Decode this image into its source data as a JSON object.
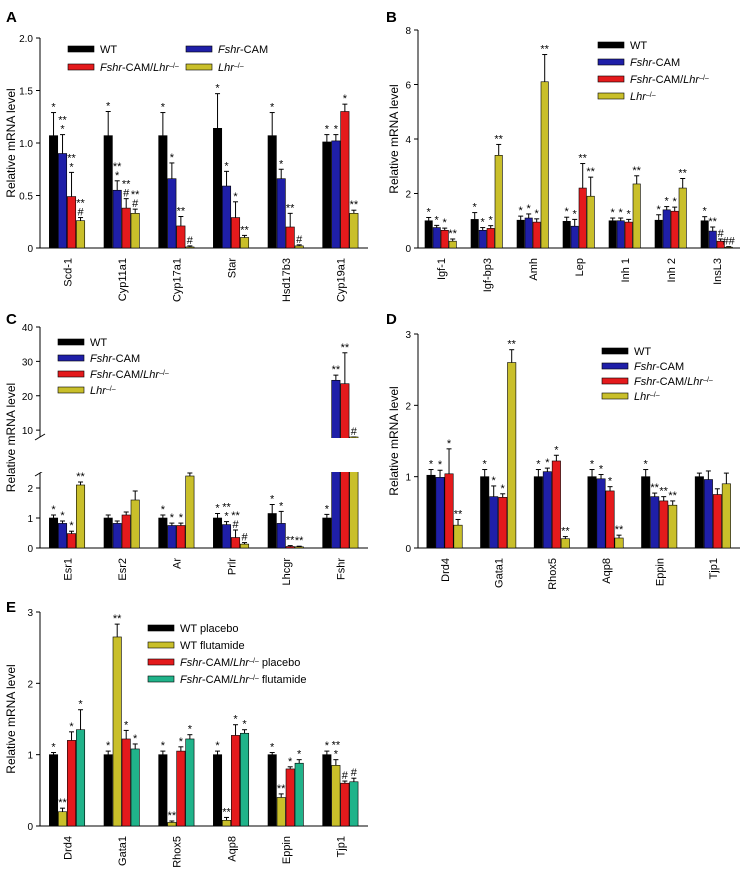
{
  "legend_symbols": {
    "double": "**",
    "single": "*",
    "hash": "#",
    "hash2": "##"
  },
  "colors": {
    "WT": "#000000",
    "Fshr-CAM": "#1f1fa8",
    "Fshr-CAM/Lhr-/-": "#e41a1c",
    "Lhr-/-": "#c9bf2a",
    "flutamide_cam": "#20b38a"
  },
  "chart_data": [
    {
      "panel": "A",
      "type": "bar",
      "ylabel": "Relative mRNA level",
      "ylim": [
        0,
        2.0
      ],
      "yticks": [
        "0",
        "0.5",
        "1.0",
        "1.5",
        "2.0"
      ],
      "categories": [
        "Scd-1",
        "Cyp11a1",
        "Cyp17a1",
        "Star",
        "Hsd17b3",
        "Cyp19a1"
      ],
      "series": [
        {
          "name": "WT",
          "values": [
            1.07,
            1.07,
            1.07,
            1.14,
            1.07,
            1.01
          ],
          "errors": [
            0.22,
            0.23,
            0.22,
            0.33,
            0.22,
            0.07
          ],
          "labels": [
            "*",
            "*",
            "*",
            "*",
            "*",
            "*"
          ]
        },
        {
          "name": "Fshr-CAM",
          "values": [
            0.9,
            0.55,
            0.66,
            0.59,
            0.66,
            1.02
          ],
          "errors": [
            0.18,
            0.09,
            0.15,
            0.14,
            0.09,
            0.06
          ],
          "labels": [
            "**\n*",
            "**\n*",
            "*",
            "*",
            "*",
            "*"
          ]
        },
        {
          "name": "Fshr-CAM/Lhr-/-",
          "values": [
            0.49,
            0.38,
            0.21,
            0.29,
            0.2,
            1.3
          ],
          "errors": [
            0.23,
            0.09,
            0.09,
            0.15,
            0.13,
            0.07
          ],
          "labels": [
            "**\n*",
            "**\n#",
            "**",
            "*",
            "**",
            "*"
          ]
        },
        {
          "name": "Lhr-/-",
          "values": [
            0.26,
            0.33,
            0.01,
            0.1,
            0.02,
            0.33
          ],
          "errors": [
            0.03,
            0.04,
            0.01,
            0.02,
            0.01,
            0.03
          ],
          "labels": [
            "**\n#",
            "**\n#",
            "#",
            "**",
            "#",
            "**"
          ]
        }
      ],
      "legend": [
        "WT",
        "Fshr-CAM",
        "Fshr-CAM/Lhr-/-",
        "Lhr-/-"
      ]
    },
    {
      "panel": "B",
      "type": "bar",
      "ylabel": "Relative mRNA level",
      "ylim": [
        0,
        8
      ],
      "yticks": [
        "0",
        "2",
        "4",
        "6",
        "8"
      ],
      "categories": [
        "Igf-1",
        "Igf-bp3",
        "Amh",
        "Lep",
        "Inh 1",
        "Inh 2",
        "InsL3"
      ],
      "series": [
        {
          "name": "WT",
          "values": [
            1.0,
            1.05,
            1.02,
            0.98,
            1.0,
            1.02,
            1.0
          ],
          "errors": [
            0.12,
            0.25,
            0.15,
            0.15,
            0.1,
            0.2,
            0.15
          ],
          "labels": [
            "*",
            "*",
            "*",
            "*",
            "*",
            "*",
            "*"
          ]
        },
        {
          "name": "Fshr-CAM",
          "values": [
            0.75,
            0.65,
            1.1,
            0.8,
            1.0,
            1.4,
            0.62
          ],
          "errors": [
            0.08,
            0.1,
            0.15,
            0.25,
            0.1,
            0.12,
            0.15
          ],
          "labels": [
            "*",
            "*",
            "*",
            "*",
            "*",
            "*",
            "**"
          ]
        },
        {
          "name": "Fshr-CAM/Lhr-/-",
          "values": [
            0.65,
            0.72,
            0.95,
            2.2,
            0.95,
            1.35,
            0.25
          ],
          "errors": [
            0.08,
            0.1,
            0.12,
            0.9,
            0.1,
            0.15,
            0.08
          ],
          "labels": [
            "*",
            "*",
            "*",
            "**",
            "*",
            "*",
            "#"
          ]
        },
        {
          "name": "Lhr-/-",
          "values": [
            0.25,
            3.4,
            6.1,
            1.9,
            2.35,
            2.2,
            0.03
          ],
          "errors": [
            0.08,
            0.4,
            1.0,
            0.7,
            0.3,
            0.35,
            0.02
          ],
          "labels": [
            "**",
            "**",
            "**",
            "**",
            "**",
            "**",
            "##"
          ]
        }
      ],
      "legend": [
        "WT",
        "Fshr-CAM",
        "Fshr-CAM/Lhr-/-",
        "Lhr-/-"
      ]
    },
    {
      "panel": "C",
      "type": "bar",
      "broken_axis": true,
      "ylabel": "Relative mRNA level",
      "ylim_lower": [
        0,
        2.5
      ],
      "yticks_lower": [
        "0",
        "1",
        "2"
      ],
      "ylim_upper": [
        8,
        40
      ],
      "yticks_upper": [
        "10",
        "20",
        "30",
        "40"
      ],
      "categories": [
        "Esr1",
        "Esr2",
        "Ar",
        "Prlr",
        "Lhcgr",
        "Fshr"
      ],
      "series": [
        {
          "name": "WT",
          "values": [
            1.0,
            1.0,
            1.0,
            1.0,
            1.15,
            1.0
          ],
          "errors": [
            0.1,
            0.1,
            0.1,
            0.15,
            0.3,
            0.12
          ],
          "labels": [
            "*",
            "",
            "*",
            "*",
            "*",
            "*"
          ]
        },
        {
          "name": "Fshr-CAM",
          "values": [
            0.82,
            0.82,
            0.75,
            0.78,
            0.82,
            24.5
          ],
          "errors": [
            0.08,
            0.08,
            0.08,
            0.1,
            0.4,
            1.5
          ],
          "labels": [
            "*",
            "",
            "*",
            "**\n*",
            "*",
            "**"
          ]
        },
        {
          "name": "Fshr-CAM/Lhr-/-",
          "values": [
            0.48,
            1.1,
            0.75,
            0.35,
            0.05,
            23.5
          ],
          "errors": [
            0.08,
            0.1,
            0.08,
            0.25,
            0.03,
            9.0
          ],
          "labels": [
            "*",
            "",
            "*",
            "**\n#",
            "**",
            "**"
          ]
        },
        {
          "name": "Lhr-/-",
          "values": [
            2.1,
            1.6,
            2.4,
            0.13,
            0.04,
            6.0
          ],
          "errors": [
            0.1,
            0.3,
            0.1,
            0.05,
            0.02,
            0.6
          ],
          "labels": [
            "**",
            "",
            "**",
            "#",
            "**",
            "#"
          ]
        }
      ],
      "legend": [
        "WT",
        "Fshr-CAM",
        "Fshr-CAM/Lhr-/-",
        "Lhr-/-"
      ]
    },
    {
      "panel": "D",
      "type": "bar",
      "ylabel": "Relative mRNA level",
      "ylim": [
        0,
        3
      ],
      "yticks": [
        "0",
        "1",
        "2",
        "3"
      ],
      "categories": [
        "Drd4",
        "Gata1",
        "Rhox5",
        "Aqp8",
        "Eppin",
        "Tjp1"
      ],
      "series": [
        {
          "name": "WT",
          "values": [
            1.02,
            1.0,
            1.0,
            1.0,
            1.0,
            1.0
          ],
          "errors": [
            0.08,
            0.1,
            0.1,
            0.1,
            0.1,
            0.05
          ],
          "labels": [
            "*",
            "*",
            "*",
            "*",
            "*",
            ""
          ]
        },
        {
          "name": "Fshr-CAM",
          "values": [
            0.99,
            0.72,
            1.07,
            0.97,
            0.72,
            0.96
          ],
          "errors": [
            0.1,
            0.15,
            0.05,
            0.06,
            0.05,
            0.12
          ],
          "labels": [
            "*",
            "*",
            "*",
            "*",
            "**",
            ""
          ]
        },
        {
          "name": "Fshr-CAM/Lhr-/-",
          "values": [
            1.04,
            0.71,
            1.22,
            0.8,
            0.66,
            0.75
          ],
          "errors": [
            0.35,
            0.05,
            0.08,
            0.06,
            0.06,
            0.08
          ],
          "labels": [
            "*",
            "*",
            "*",
            "*",
            "**",
            ""
          ]
        },
        {
          "name": "Lhr-/-",
          "values": [
            0.32,
            2.6,
            0.13,
            0.14,
            0.6,
            0.9
          ],
          "errors": [
            0.08,
            0.18,
            0.03,
            0.04,
            0.06,
            0.15
          ],
          "labels": [
            "**",
            "**",
            "**",
            "**",
            "**",
            ""
          ]
        }
      ],
      "legend": [
        "WT",
        "Fshr-CAM",
        "Fshr-CAM/Lhr-/-",
        "Lhr-/-"
      ]
    },
    {
      "panel": "E",
      "type": "bar",
      "ylabel": "Relative mRNA level",
      "ylim": [
        0,
        3
      ],
      "yticks": [
        "0",
        "1",
        "2",
        "3"
      ],
      "categories": [
        "Drd4",
        "Gata1",
        "Rhox5",
        "Aqp8",
        "Eppin",
        "Tjp1"
      ],
      "series": [
        {
          "name": "WT placebo",
          "values": [
            1.0,
            1.0,
            1.0,
            1.0,
            1.0,
            1.0
          ],
          "errors": [
            0.03,
            0.05,
            0.05,
            0.05,
            0.03,
            0.05
          ],
          "labels": [
            "*",
            "*",
            "*",
            "*",
            "*",
            "*"
          ]
        },
        {
          "name": "WT flutamide",
          "values": [
            0.2,
            2.65,
            0.05,
            0.08,
            0.4,
            0.85
          ],
          "errors": [
            0.05,
            0.18,
            0.02,
            0.04,
            0.05,
            0.08
          ],
          "labels": [
            "**",
            "**",
            "**",
            "**",
            "**",
            "**\n*"
          ]
        },
        {
          "name": "Fshr-CAM/Lhr-/- placebo",
          "values": [
            1.2,
            1.22,
            1.05,
            1.27,
            0.8,
            0.6
          ],
          "errors": [
            0.12,
            0.12,
            0.06,
            0.15,
            0.03,
            0.03
          ],
          "labels": [
            "*",
            "*",
            "*",
            "*",
            "*",
            "#"
          ]
        },
        {
          "name": "Fshr-CAM/Lhr-/- flutamide",
          "values": [
            1.35,
            1.08,
            1.22,
            1.3,
            0.88,
            0.62
          ],
          "errors": [
            0.28,
            0.07,
            0.06,
            0.05,
            0.05,
            0.05
          ],
          "labels": [
            "*",
            "*",
            "*",
            "*",
            "*",
            "#"
          ]
        }
      ],
      "legend": [
        "WT placebo",
        "WT flutamide",
        "Fshr-CAM/Lhr-/- placebo",
        "Fshr-CAM/Lhr-/- flutamide"
      ]
    }
  ]
}
